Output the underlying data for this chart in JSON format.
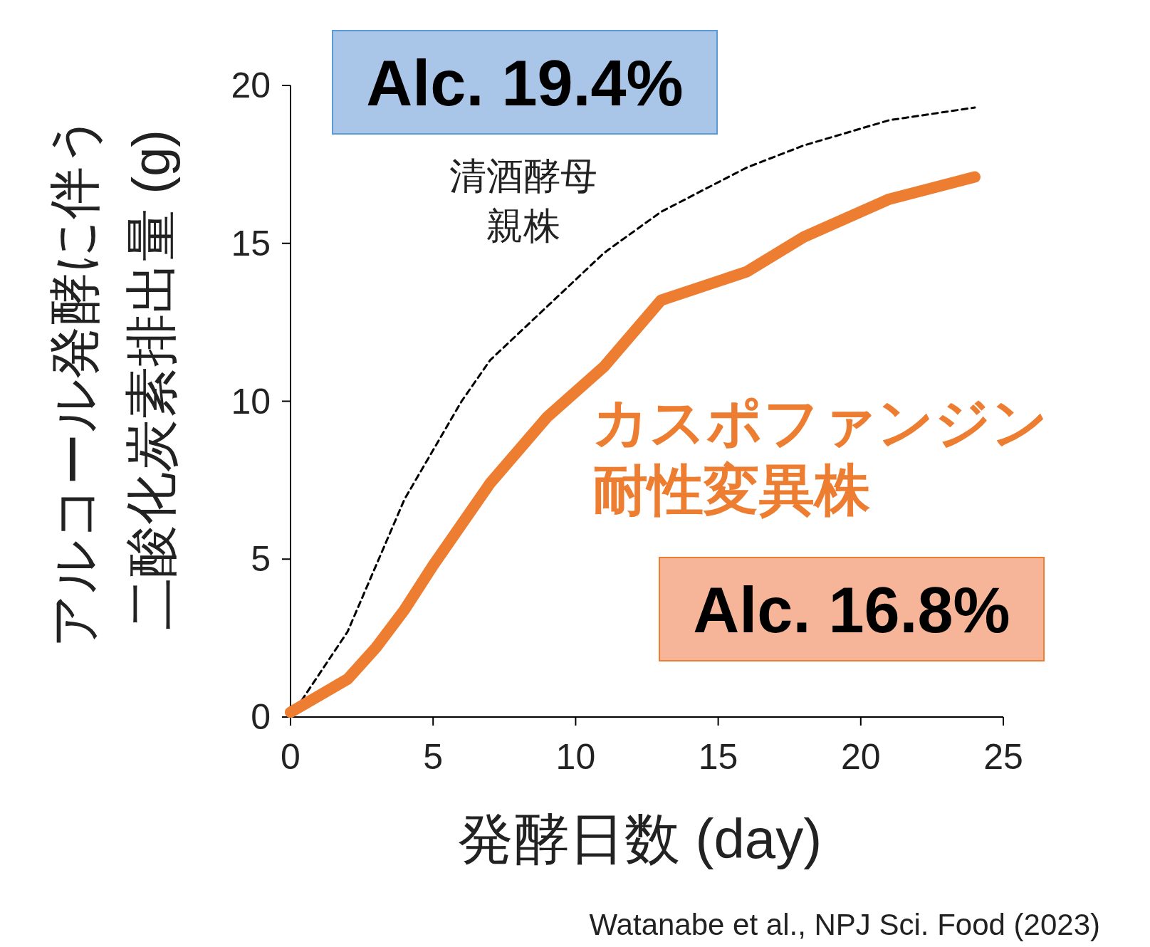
{
  "chart_data": {
    "type": "line",
    "ylabel": "アルコール発酵に伴う二酸化炭素排出量 (g)",
    "xlabel": "発酵日数 (day)",
    "xlim": [
      0,
      25
    ],
    "ylim": [
      0,
      20
    ],
    "xticks": [
      0,
      5,
      10,
      15,
      20,
      25
    ],
    "yticks": [
      0,
      5,
      10,
      15,
      20
    ],
    "grid": false,
    "legend": false,
    "marker": "none",
    "series": [
      {
        "name": "清酒酵母親株",
        "color": "#000000",
        "line_style": "dashed",
        "x": [
          0,
          2,
          4,
          6,
          7,
          9,
          11,
          13,
          16,
          18,
          21,
          24
        ],
        "values": [
          0,
          2.7,
          6.9,
          10,
          11.3,
          13,
          14.7,
          16,
          17.4,
          18.1,
          18.9,
          19.3
        ]
      },
      {
        "name": "カスポファンジン耐性変異株",
        "color": "#ed7d31",
        "line_style": "solid",
        "x": [
          0,
          2,
          3,
          4,
          5,
          7,
          9,
          11,
          13,
          16,
          18,
          21,
          24
        ],
        "values": [
          0.15,
          1.2,
          2.2,
          3.4,
          4.8,
          7.4,
          9.5,
          11.1,
          13.2,
          14.1,
          15.2,
          16.4,
          17.1
        ]
      }
    ],
    "annotations": [
      "Alc. 19.4%",
      "Alc. 16.8%",
      "Watanabe et al., NPJ Sci. Food (2023)"
    ]
  }
}
